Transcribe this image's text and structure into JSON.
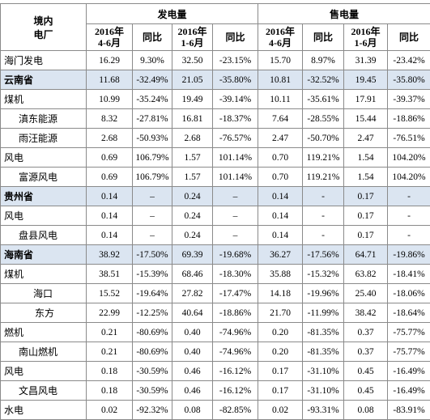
{
  "header": {
    "col0": "境内\n电厂",
    "group1": "发电量",
    "group2": "售电量",
    "sub": [
      "2016年\n4-6月",
      "同比",
      "2016年\n1-6月",
      "同比",
      "2016年\n4-6月",
      "同比",
      "2016年\n1-6月",
      "同比"
    ]
  },
  "table": {
    "highlight_color": "#dbe5f1",
    "rows": [
      {
        "name": "海门发电",
        "cells": [
          "16.29",
          "9.30%",
          "32.50",
          "-23.15%",
          "15.70",
          "8.97%",
          "31.39",
          "-23.42%"
        ]
      },
      {
        "name": "云南省",
        "highlight": true,
        "cells": [
          "11.68",
          "-32.49%",
          "21.05",
          "-35.80%",
          "10.81",
          "-32.52%",
          "19.45",
          "-35.80%"
        ]
      },
      {
        "name": "煤机",
        "cells": [
          "10.99",
          "-35.24%",
          "19.49",
          "-39.14%",
          "10.11",
          "-35.61%",
          "17.91",
          "-39.37%"
        ]
      },
      {
        "name": "滇东能源",
        "cells": [
          "8.32",
          "-27.81%",
          "16.81",
          "-18.37%",
          "7.64",
          "-28.55%",
          "15.44",
          "-18.86%"
        ]
      },
      {
        "name": "雨汪能源",
        "cells": [
          "2.68",
          "-50.93%",
          "2.68",
          "-76.57%",
          "2.47",
          "-50.70%",
          "2.47",
          "-76.51%"
        ]
      },
      {
        "name": "风电",
        "cells": [
          "0.69",
          "106.79%",
          "1.57",
          "101.14%",
          "0.70",
          "119.21%",
          "1.54",
          "104.20%"
        ]
      },
      {
        "name": "富源风电",
        "cells": [
          "0.69",
          "106.79%",
          "1.57",
          "101.14%",
          "0.70",
          "119.21%",
          "1.54",
          "104.20%"
        ]
      },
      {
        "name": "贵州省",
        "highlight": true,
        "cells": [
          "0.14",
          "–",
          "0.24",
          "–",
          "0.14",
          "-",
          "0.17",
          "-"
        ]
      },
      {
        "name": "风电",
        "cells": [
          "0.14",
          "–",
          "0.24",
          "–",
          "0.14",
          "-",
          "0.17",
          "-"
        ]
      },
      {
        "name": "盘县风电",
        "cells": [
          "0.14",
          "–",
          "0.24",
          "–",
          "0.14",
          "-",
          "0.17",
          "-"
        ]
      },
      {
        "name": "海南省",
        "highlight": true,
        "cells": [
          "38.92",
          "-17.50%",
          "69.39",
          "-19.68%",
          "36.27",
          "-17.56%",
          "64.71",
          "-19.86%"
        ]
      },
      {
        "name": "煤机",
        "cells": [
          "38.51",
          "-15.39%",
          "68.46",
          "-18.30%",
          "35.88",
          "-15.32%",
          "63.82",
          "-18.41%"
        ]
      },
      {
        "name": "海口",
        "cells": [
          "15.52",
          "-19.64%",
          "27.82",
          "-17.47%",
          "14.18",
          "-19.96%",
          "25.40",
          "-18.06%"
        ]
      },
      {
        "name": "东方",
        "cells": [
          "22.99",
          "-12.25%",
          "40.64",
          "-18.86%",
          "21.70",
          "-11.99%",
          "38.42",
          "-18.64%"
        ]
      },
      {
        "name": "燃机",
        "cells": [
          "0.21",
          "-80.69%",
          "0.40",
          "-74.96%",
          "0.20",
          "-81.35%",
          "0.37",
          "-75.77%"
        ]
      },
      {
        "name": "南山燃机",
        "cells": [
          "0.21",
          "-80.69%",
          "0.40",
          "-74.96%",
          "0.20",
          "-81.35%",
          "0.37",
          "-75.77%"
        ]
      },
      {
        "name": "风电",
        "cells": [
          "0.18",
          "-30.59%",
          "0.46",
          "-16.12%",
          "0.17",
          "-31.10%",
          "0.45",
          "-16.49%"
        ]
      },
      {
        "name": "文昌风电",
        "cells": [
          "0.18",
          "-30.59%",
          "0.46",
          "-16.12%",
          "0.17",
          "-31.10%",
          "0.45",
          "-16.49%"
        ]
      },
      {
        "name": "水电",
        "cells": [
          "0.02",
          "-92.32%",
          "0.08",
          "-82.85%",
          "0.02",
          "-93.31%",
          "0.08",
          "-83.91%"
        ]
      }
    ]
  }
}
